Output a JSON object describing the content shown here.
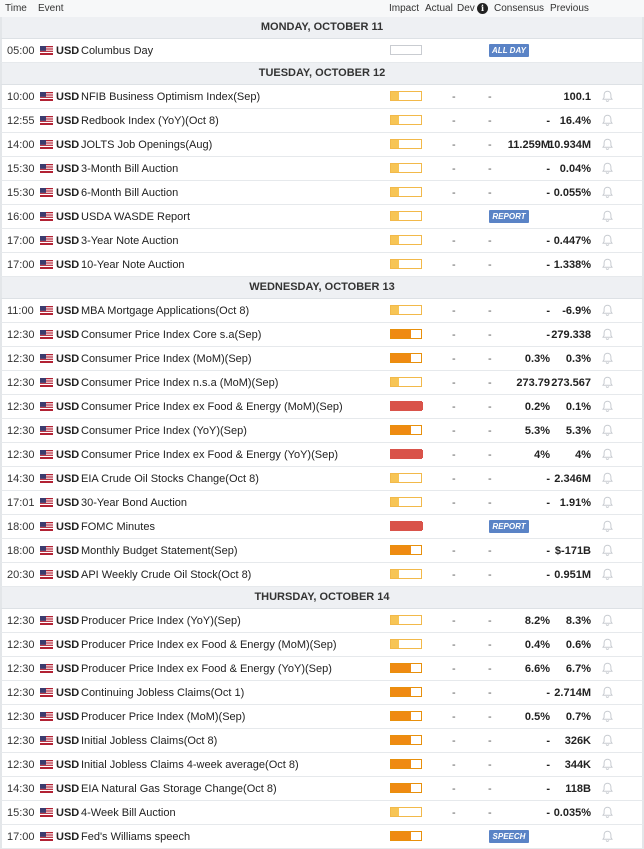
{
  "header": {
    "time": "Time",
    "event": "Event",
    "impact": "Impact",
    "actual": "Actual",
    "dev": "Dev",
    "consensus": "Consensus",
    "previous": "Previous"
  },
  "days": [
    {
      "label": "MONDAY, OCTOBER 11",
      "events": [
        {
          "time": "05:00",
          "currency": "USD",
          "event": "Columbus Day",
          "impact": "none",
          "actual": "",
          "dev": "",
          "consensus": "",
          "previous": "",
          "tag": "ALL DAY"
        }
      ]
    },
    {
      "label": "TUESDAY, OCTOBER 12",
      "events": [
        {
          "time": "10:00",
          "currency": "USD",
          "event": "NFIB Business Optimism Index(Sep)",
          "impact": "low",
          "actual": "-",
          "dev": "-",
          "consensus": "",
          "previous": "100.1"
        },
        {
          "time": "12:55",
          "currency": "USD",
          "event": "Redbook Index (YoY)(Oct 8)",
          "impact": "low",
          "actual": "-",
          "dev": "-",
          "consensus": "-",
          "previous": "16.4%"
        },
        {
          "time": "14:00",
          "currency": "USD",
          "event": "JOLTS Job Openings(Aug)",
          "impact": "low",
          "actual": "-",
          "dev": "-",
          "consensus": "11.259M",
          "previous": "10.934M"
        },
        {
          "time": "15:30",
          "currency": "USD",
          "event": "3-Month Bill Auction",
          "impact": "low",
          "actual": "-",
          "dev": "-",
          "consensus": "-",
          "previous": "0.04%"
        },
        {
          "time": "15:30",
          "currency": "USD",
          "event": "6-Month Bill Auction",
          "impact": "low",
          "actual": "-",
          "dev": "-",
          "consensus": "-",
          "previous": "0.055%"
        },
        {
          "time": "16:00",
          "currency": "USD",
          "event": "USDA WASDE Report",
          "impact": "low",
          "actual": "",
          "dev": "",
          "consensus": "",
          "previous": "",
          "tag": "REPORT"
        },
        {
          "time": "17:00",
          "currency": "USD",
          "event": "3-Year Note Auction",
          "impact": "low",
          "actual": "-",
          "dev": "-",
          "consensus": "-",
          "previous": "0.447%"
        },
        {
          "time": "17:00",
          "currency": "USD",
          "event": "10-Year Note Auction",
          "impact": "low",
          "actual": "-",
          "dev": "-",
          "consensus": "-",
          "previous": "1.338%"
        }
      ]
    },
    {
      "label": "WEDNESDAY, OCTOBER 13",
      "events": [
        {
          "time": "11:00",
          "currency": "USD",
          "event": "MBA Mortgage Applications(Oct 8)",
          "impact": "low",
          "actual": "-",
          "dev": "-",
          "consensus": "-",
          "previous": "-6.9%"
        },
        {
          "time": "12:30",
          "currency": "USD",
          "event": "Consumer Price Index Core s.a(Sep)",
          "impact": "med",
          "actual": "-",
          "dev": "-",
          "consensus": "-",
          "previous": "279.338"
        },
        {
          "time": "12:30",
          "currency": "USD",
          "event": "Consumer Price Index (MoM)(Sep)",
          "impact": "med",
          "actual": "-",
          "dev": "-",
          "consensus": "0.3%",
          "previous": "0.3%"
        },
        {
          "time": "12:30",
          "currency": "USD",
          "event": "Consumer Price Index n.s.a (MoM)(Sep)",
          "impact": "low",
          "actual": "-",
          "dev": "-",
          "consensus": "273.79",
          "previous": "273.567"
        },
        {
          "time": "12:30",
          "currency": "USD",
          "event": "Consumer Price Index ex Food & Energy (MoM)(Sep)",
          "impact": "high",
          "actual": "-",
          "dev": "-",
          "consensus": "0.2%",
          "previous": "0.1%"
        },
        {
          "time": "12:30",
          "currency": "USD",
          "event": "Consumer Price Index (YoY)(Sep)",
          "impact": "med",
          "actual": "-",
          "dev": "-",
          "consensus": "5.3%",
          "previous": "5.3%"
        },
        {
          "time": "12:30",
          "currency": "USD",
          "event": "Consumer Price Index ex Food & Energy (YoY)(Sep)",
          "impact": "high",
          "actual": "-",
          "dev": "-",
          "consensus": "4%",
          "previous": "4%"
        },
        {
          "time": "14:30",
          "currency": "USD",
          "event": "EIA Crude Oil Stocks Change(Oct 8)",
          "impact": "low",
          "actual": "-",
          "dev": "-",
          "consensus": "-",
          "previous": "2.346M"
        },
        {
          "time": "17:01",
          "currency": "USD",
          "event": "30-Year Bond Auction",
          "impact": "low",
          "actual": "-",
          "dev": "-",
          "consensus": "-",
          "previous": "1.91%"
        },
        {
          "time": "18:00",
          "currency": "USD",
          "event": "FOMC Minutes",
          "impact": "high",
          "actual": "",
          "dev": "",
          "consensus": "",
          "previous": "",
          "tag": "REPORT"
        },
        {
          "time": "18:00",
          "currency": "USD",
          "event": "Monthly Budget Statement(Sep)",
          "impact": "med",
          "actual": "-",
          "dev": "-",
          "consensus": "-",
          "previous": "$-171B"
        },
        {
          "time": "20:30",
          "currency": "USD",
          "event": "API Weekly Crude Oil Stock(Oct 8)",
          "impact": "low",
          "actual": "-",
          "dev": "-",
          "consensus": "-",
          "previous": "0.951M"
        }
      ]
    },
    {
      "label": "THURSDAY, OCTOBER 14",
      "events": [
        {
          "time": "12:30",
          "currency": "USD",
          "event": "Producer Price Index (YoY)(Sep)",
          "impact": "low",
          "actual": "-",
          "dev": "-",
          "consensus": "8.2%",
          "previous": "8.3%"
        },
        {
          "time": "12:30",
          "currency": "USD",
          "event": "Producer Price Index ex Food & Energy (MoM)(Sep)",
          "impact": "low",
          "actual": "-",
          "dev": "-",
          "consensus": "0.4%",
          "previous": "0.6%"
        },
        {
          "time": "12:30",
          "currency": "USD",
          "event": "Producer Price Index ex Food & Energy (YoY)(Sep)",
          "impact": "med",
          "actual": "-",
          "dev": "-",
          "consensus": "6.6%",
          "previous": "6.7%"
        },
        {
          "time": "12:30",
          "currency": "USD",
          "event": "Continuing Jobless Claims(Oct 1)",
          "impact": "med",
          "actual": "-",
          "dev": "-",
          "consensus": "-",
          "previous": "2.714M"
        },
        {
          "time": "12:30",
          "currency": "USD",
          "event": "Producer Price Index (MoM)(Sep)",
          "impact": "med",
          "actual": "-",
          "dev": "-",
          "consensus": "0.5%",
          "previous": "0.7%"
        },
        {
          "time": "12:30",
          "currency": "USD",
          "event": "Initial Jobless Claims(Oct 8)",
          "impact": "med",
          "actual": "-",
          "dev": "-",
          "consensus": "-",
          "previous": "326K"
        },
        {
          "time": "12:30",
          "currency": "USD",
          "event": "Initial Jobless Claims 4-week average(Oct 8)",
          "impact": "med",
          "actual": "-",
          "dev": "-",
          "consensus": "-",
          "previous": "344K"
        },
        {
          "time": "14:30",
          "currency": "USD",
          "event": "EIA Natural Gas Storage Change(Oct 8)",
          "impact": "med",
          "actual": "-",
          "dev": "-",
          "consensus": "-",
          "previous": "118B"
        },
        {
          "time": "15:30",
          "currency": "USD",
          "event": "4-Week Bill Auction",
          "impact": "low",
          "actual": "-",
          "dev": "-",
          "consensus": "-",
          "previous": "0.035%"
        },
        {
          "time": "17:00",
          "currency": "USD",
          "event": "Fed's Williams speech",
          "impact": "med",
          "actual": "",
          "dev": "",
          "consensus": "",
          "previous": "",
          "tag": "SPEECH"
        }
      ]
    }
  ],
  "icons": {
    "flag": "us-flag-icon",
    "bell": "bell-icon",
    "info": "info-icon"
  },
  "colors": {
    "impact_low": "#f7c556",
    "impact_med": "#ef8a12",
    "impact_high": "#d9534a",
    "tag_bg": "#5a83c6"
  }
}
